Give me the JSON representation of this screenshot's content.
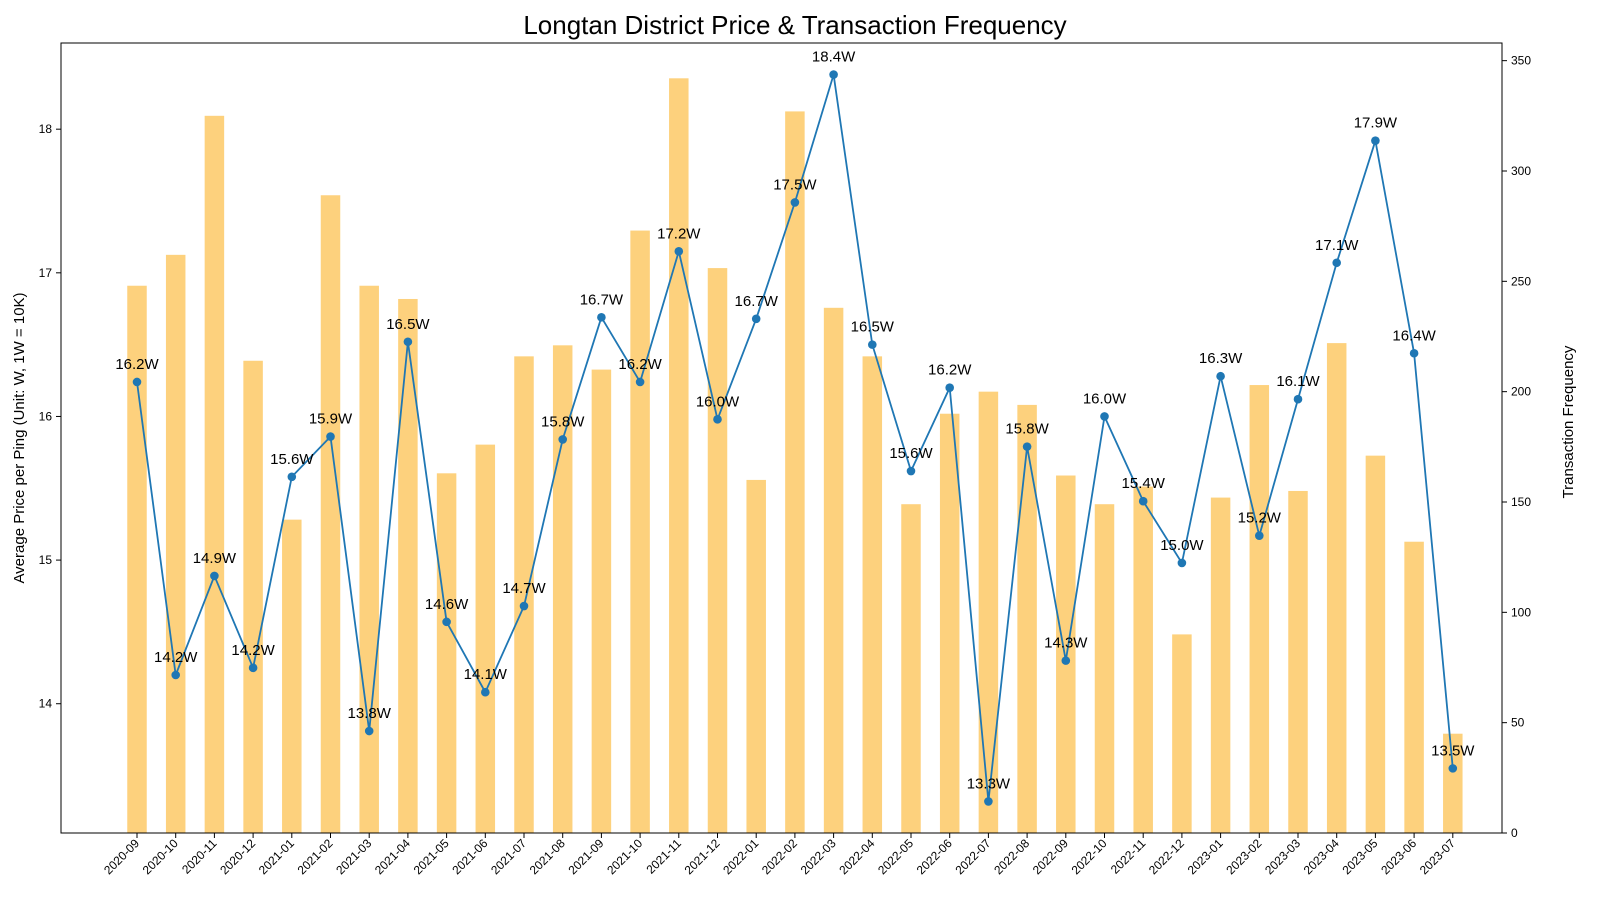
{
  "chart_data": {
    "type": "bar",
    "title": "Longtan District Price & Transaction Frequency",
    "xlabel": "",
    "ylabel": "Average Price per Ping (Unit: W, 1W = 10K)",
    "y2label": "Transaction Frequency",
    "categories": [
      "2020-09",
      "2020-10",
      "2020-11",
      "2020-12",
      "2021-01",
      "2021-02",
      "2021-03",
      "2021-04",
      "2021-05",
      "2021-06",
      "2021-07",
      "2021-08",
      "2021-09",
      "2021-10",
      "2021-11",
      "2021-12",
      "2022-01",
      "2022-02",
      "2022-03",
      "2022-04",
      "2022-05",
      "2022-06",
      "2022-07",
      "2022-08",
      "2022-09",
      "2022-10",
      "2022-11",
      "2022-12",
      "2023-01",
      "2023-02",
      "2023-03",
      "2023-04",
      "2023-05",
      "2023-06",
      "2023-07"
    ],
    "ylim": [
      13.1,
      18.6
    ],
    "y_ticks": [
      14,
      15,
      16,
      17,
      18
    ],
    "y2lim": [
      0,
      358
    ],
    "y2_ticks": [
      0,
      50,
      100,
      150,
      200,
      250,
      300,
      350
    ],
    "grid": false,
    "series": [
      {
        "type": "bar",
        "axis": "right",
        "color": "#fdc65d",
        "values": [
          248,
          262,
          325,
          214,
          142,
          289,
          248,
          242,
          163,
          176,
          216,
          221,
          210,
          273,
          342,
          256,
          160,
          327,
          238,
          216,
          149,
          190,
          200,
          194,
          162,
          149,
          157,
          90,
          152,
          203,
          155,
          222,
          171,
          132,
          45
        ]
      },
      {
        "type": "line",
        "axis": "left",
        "color": "#1f77b4",
        "marker": "circle",
        "values": [
          16.24,
          14.2,
          14.89,
          14.25,
          15.58,
          15.86,
          13.81,
          16.52,
          14.57,
          14.08,
          14.68,
          15.84,
          16.69,
          16.24,
          17.15,
          15.98,
          16.68,
          17.49,
          18.38,
          16.5,
          15.62,
          16.2,
          13.32,
          15.79,
          14.3,
          16.0,
          15.41,
          14.98,
          16.28,
          15.17,
          16.12,
          17.07,
          17.92,
          16.44,
          13.55
        ],
        "labels": [
          "16.2W",
          "14.2W",
          "14.9W",
          "14.2W",
          "15.6W",
          "15.9W",
          "13.8W",
          "16.5W",
          "14.6W",
          "14.1W",
          "14.7W",
          "15.8W",
          "16.7W",
          "16.2W",
          "17.2W",
          "16.0W",
          "16.7W",
          "17.5W",
          "18.4W",
          "16.5W",
          "15.6W",
          "16.2W",
          "13.3W",
          "15.8W",
          "14.3W",
          "16.0W",
          "15.4W",
          "15.0W",
          "16.3W",
          "15.2W",
          "16.1W",
          "17.1W",
          "17.9W",
          "16.4W",
          "13.5W"
        ]
      }
    ]
  }
}
